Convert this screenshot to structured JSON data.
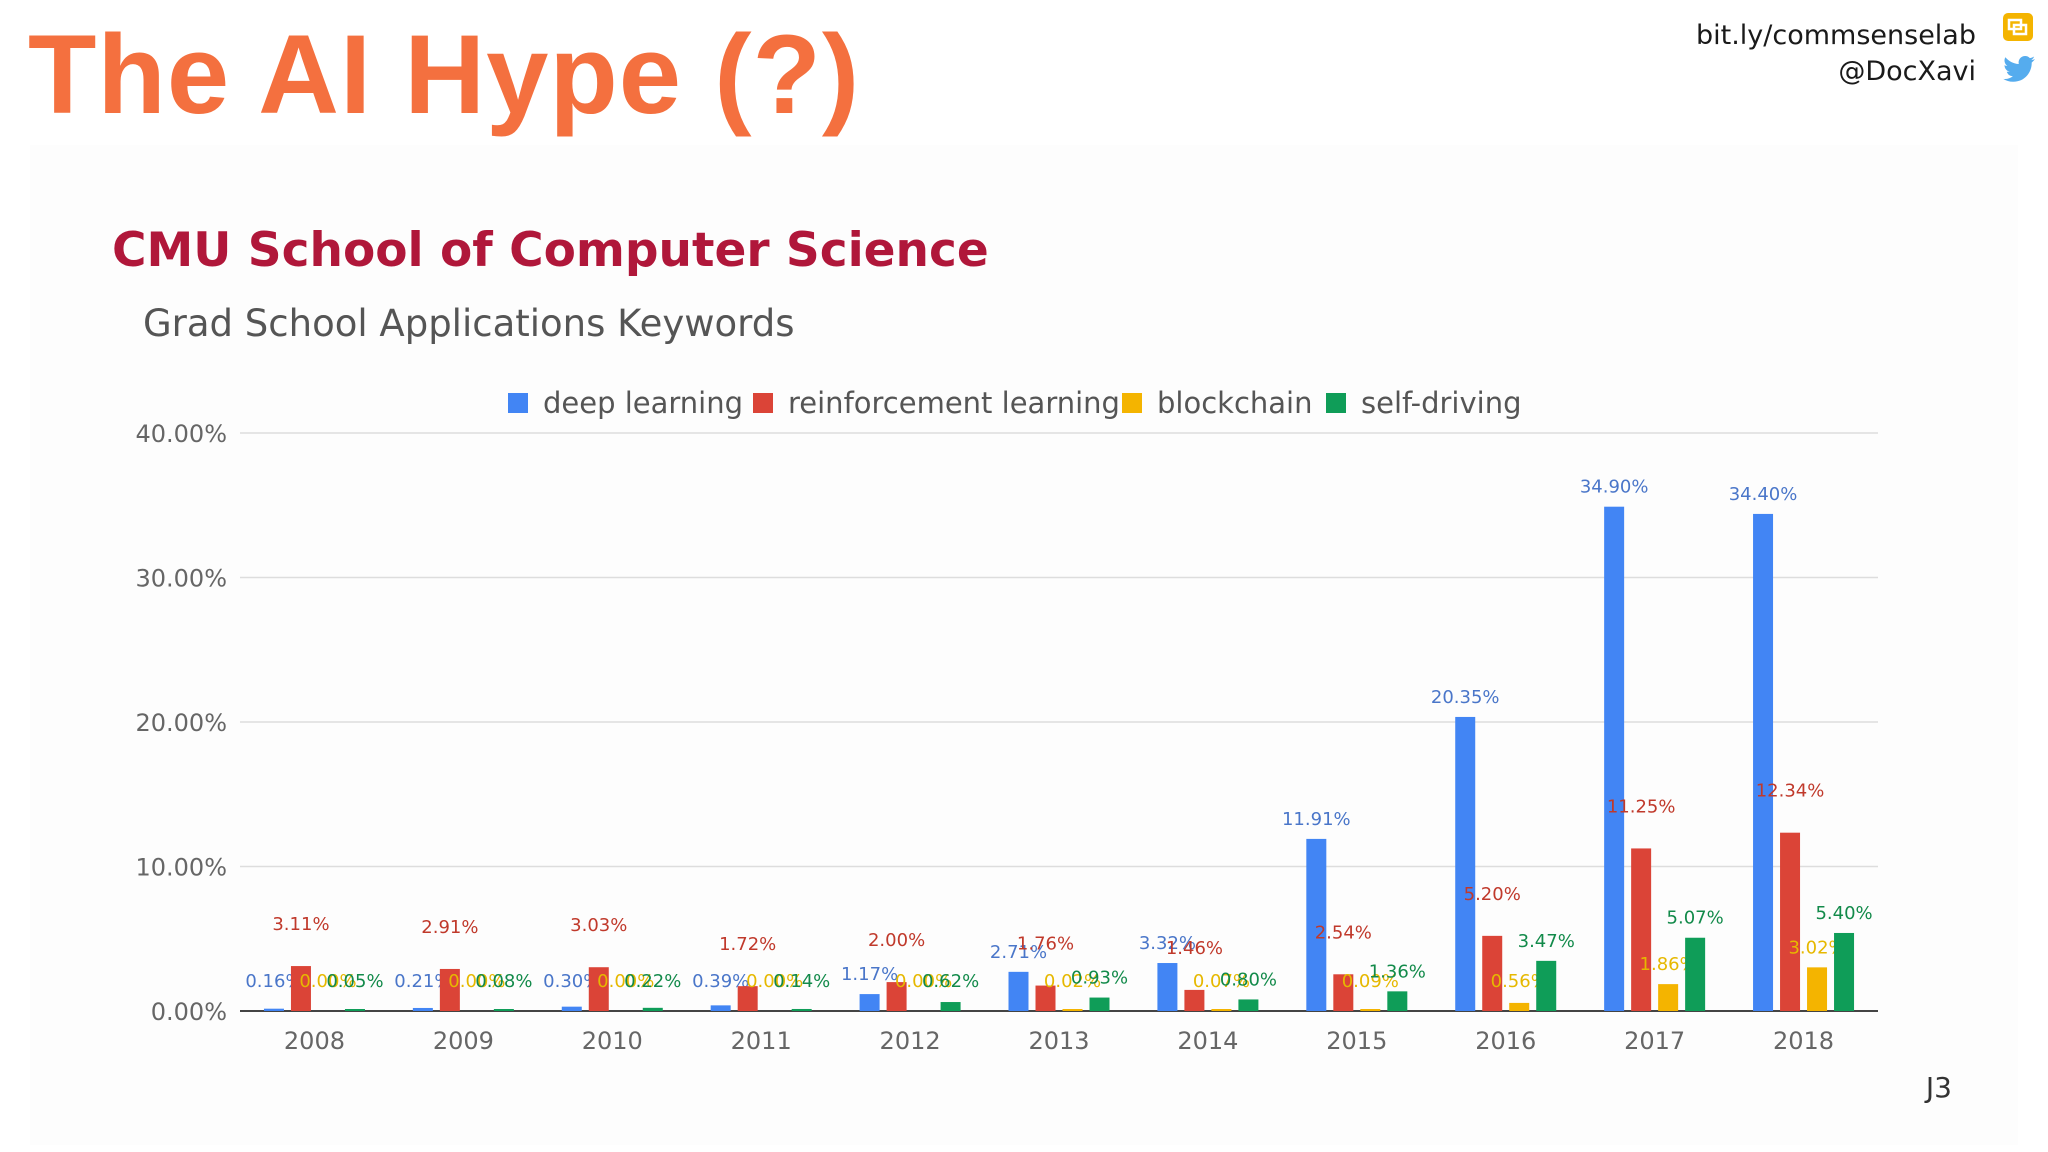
{
  "slide": {
    "title": "The AI Hype (?)",
    "credit_line1": "bit.ly/commsenselab",
    "credit_line2": "@DocXavi",
    "page_number": "J3"
  },
  "colors": {
    "title": "#f4703f",
    "chart_title": "#b0173a",
    "deep_learning": "#4285f4",
    "reinforcement_learning": "#db4437",
    "blockchain": "#f4b400",
    "self_driving": "#0f9d58"
  },
  "chart_data": {
    "type": "bar",
    "title": "CMU School of Computer Science",
    "subtitle": "Grad School Applications Keywords",
    "xlabel": "",
    "ylabel": "",
    "ylim": [
      0,
      40
    ],
    "yticks": [
      "0.00%",
      "10.00%",
      "20.00%",
      "30.00%",
      "40.00%"
    ],
    "grid": true,
    "legend_position": "top",
    "categories": [
      "2008",
      "2009",
      "2010",
      "2011",
      "2012",
      "2013",
      "2014",
      "2015",
      "2016",
      "2017",
      "2018"
    ],
    "series": [
      {
        "name": "deep learning",
        "color": "#4285f4",
        "values": [
          0.16,
          0.21,
          0.3,
          0.39,
          1.17,
          2.71,
          3.32,
          11.91,
          20.35,
          34.9,
          34.4
        ],
        "labels": [
          "0.16%",
          "0.21%",
          "0.30%",
          "0.39%",
          "1.17%",
          "2.71%",
          "3.32%",
          "11.91%",
          "20.35%",
          "34.90%",
          "34.40%"
        ]
      },
      {
        "name": "reinforcement learning",
        "color": "#db4437",
        "values": [
          3.11,
          2.91,
          3.03,
          1.72,
          2.0,
          1.76,
          1.46,
          2.54,
          5.2,
          11.25,
          12.34
        ],
        "labels": [
          "3.11%",
          "2.91%",
          "3.03%",
          "1.72%",
          "2.00%",
          "1.76%",
          "1.46%",
          "2.54%",
          "5.20%",
          "11.25%",
          "12.34%"
        ]
      },
      {
        "name": "blockchain",
        "color": "#f4b400",
        "values": [
          0.0,
          0.0,
          0.0,
          0.0,
          0.0,
          0.02,
          0.07,
          0.09,
          0.56,
          1.86,
          3.02
        ],
        "labels": [
          "0.00%",
          "0.00%",
          "0.00%",
          "0.00%",
          "0.00%",
          "0.02%",
          "0.07%",
          "0.09%",
          "0.56%",
          "1.86%",
          "3.02%"
        ]
      },
      {
        "name": "self-driving",
        "color": "#0f9d58",
        "values": [
          0.05,
          0.08,
          0.22,
          0.14,
          0.62,
          0.93,
          0.8,
          1.36,
          3.47,
          5.07,
          5.4
        ],
        "labels": [
          "0.05%",
          "0.08%",
          "0.22%",
          "0.14%",
          "0.62%",
          "0.93%",
          "0.80%",
          "1.36%",
          "3.47%",
          "5.07%",
          "5.40%"
        ]
      }
    ]
  }
}
